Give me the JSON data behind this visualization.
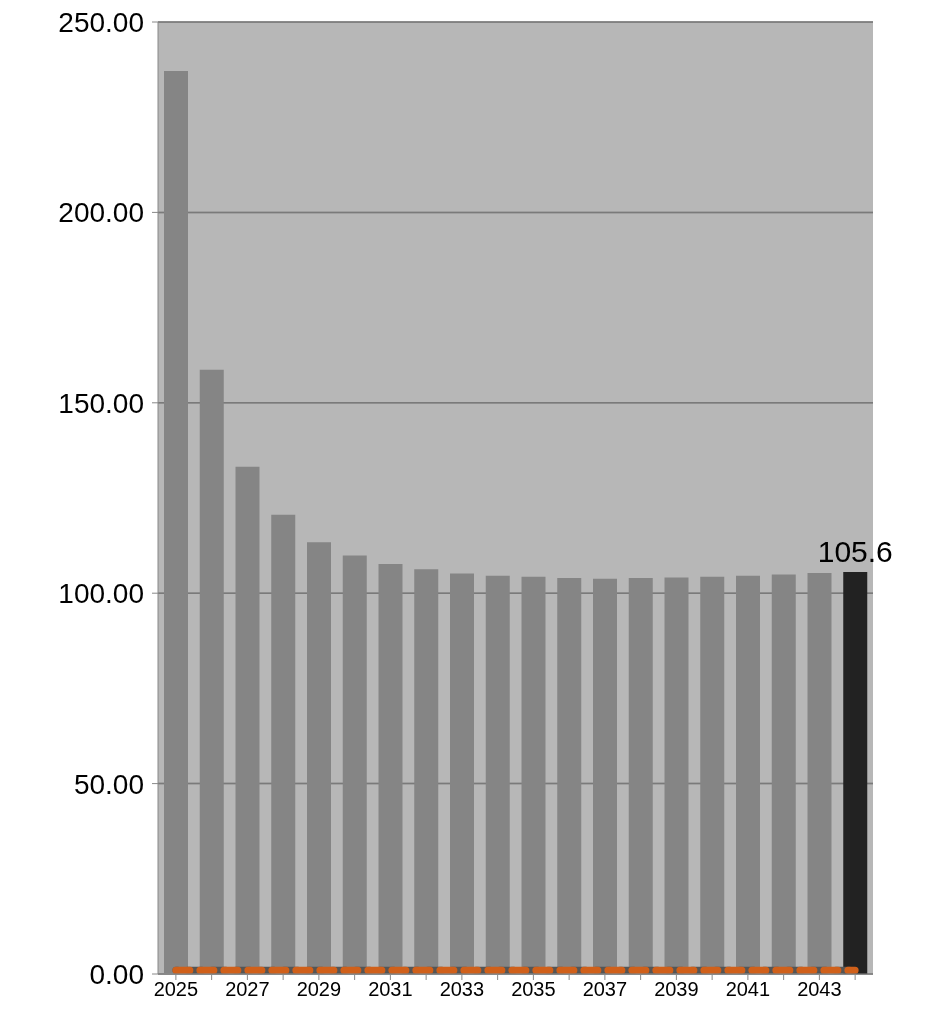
{
  "chart_data": {
    "type": "bar",
    "categories": [
      "2025",
      null,
      "2027",
      null,
      "2029",
      null,
      "2031",
      null,
      "2033",
      null,
      "2035",
      null,
      "2037",
      null,
      "2039",
      null,
      "2041",
      null,
      "2043",
      null
    ],
    "series": [
      {
        "colors": [
          "#858585",
          "#858585",
          "#858585",
          "#858585",
          "#858585",
          "#858585",
          "#858585",
          "#858585",
          "#858585",
          "#858585",
          "#858585",
          "#858585",
          "#858585",
          "#858585",
          "#858585",
          "#858585",
          "#858585",
          "#858585",
          "#858585",
          "#222222"
        ],
        "values": [
          237.1,
          158.7,
          133.2,
          120.6,
          113.4,
          109.9,
          107.7,
          106.3,
          105.2,
          104.6,
          104.3,
          104.0,
          103.8,
          104.0,
          104.1,
          104.3,
          104.6,
          104.9,
          105.3,
          105.6
        ],
        "value_labels": [
          null,
          null,
          null,
          null,
          null,
          null,
          null,
          null,
          null,
          null,
          null,
          null,
          null,
          null,
          null,
          null,
          null,
          null,
          null,
          "105.6"
        ]
      },
      {
        "type": "line",
        "color": "#555555",
        "line_style": "dashed",
        "values": [
          1,
          1,
          1,
          1,
          1,
          1,
          1,
          1,
          1,
          1,
          1,
          1,
          1,
          1,
          1,
          1,
          1,
          1,
          1,
          1
        ]
      },
      {
        "type": "line",
        "color": "#d0601a",
        "line_style": "dashed",
        "values": [
          1,
          1,
          1,
          1,
          1,
          1,
          1,
          1,
          1,
          1,
          1,
          1,
          1,
          1,
          1,
          1,
          1,
          1,
          1,
          1
        ]
      }
    ],
    "ylim": [
      0,
      250
    ],
    "yticks": [
      {
        "value": 0,
        "label": "0.00"
      },
      {
        "value": 50,
        "label": "50.00"
      },
      {
        "value": 100,
        "label": "100.00"
      },
      {
        "value": 150,
        "label": "150.00"
      },
      {
        "value": 200,
        "label": "200.00"
      },
      {
        "value": 250,
        "label": "250.00"
      }
    ],
    "grid": "y",
    "marker": "none"
  }
}
